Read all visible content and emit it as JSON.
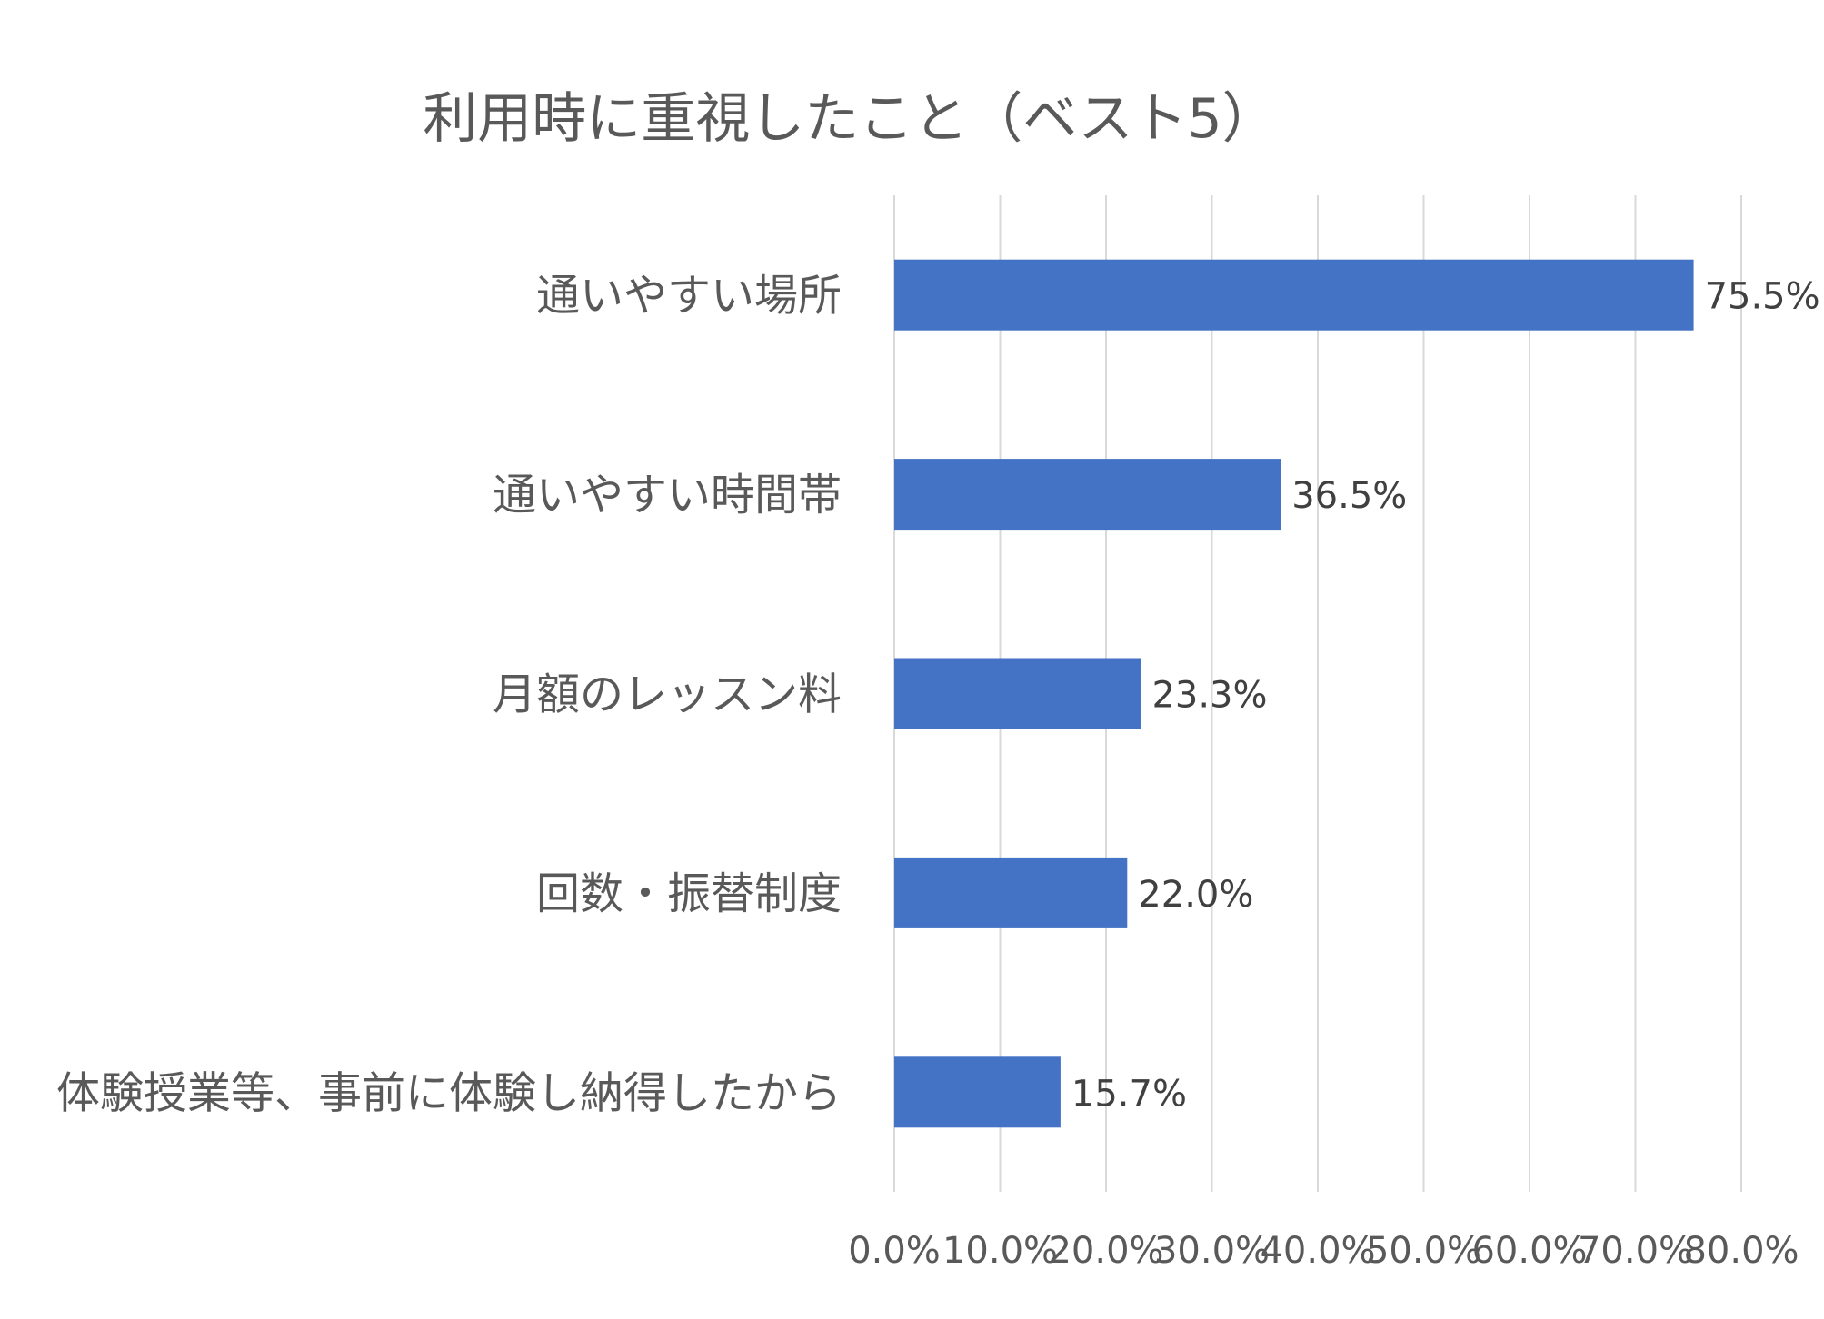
{
  "chart_data": {
    "type": "bar",
    "orientation": "horizontal",
    "title": "利用時に重視したこと（ベスト5）",
    "categories": [
      "通いやすい場所",
      "通いやすい時間帯",
      "月額のレッスン料",
      "回数・振替制度",
      "体験授業等、事前に体験し納得したから"
    ],
    "values": [
      75.5,
      36.5,
      23.3,
      22.0,
      15.7
    ],
    "data_labels": [
      "75.5%",
      "36.5%",
      "23.3%",
      "22.0%",
      "15.7%"
    ],
    "xlim": [
      0,
      80
    ],
    "x_ticks": [
      "0.0%",
      "10.0%",
      "20.0%",
      "30.0%",
      "40.0%",
      "50.0%",
      "60.0%",
      "70.0%",
      "80.0%"
    ],
    "xlabel": "",
    "ylabel": "",
    "grid": true,
    "legend": "none",
    "bar_color": "#4472C4"
  }
}
